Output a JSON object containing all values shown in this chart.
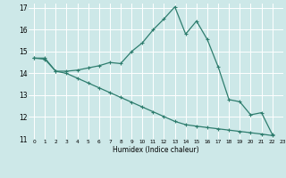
{
  "title": "",
  "xlabel": "Humidex (Indice chaleur)",
  "xlim": [
    -0.5,
    23
  ],
  "ylim": [
    11,
    17.2
  ],
  "yticks": [
    11,
    12,
    13,
    14,
    15,
    16,
    17
  ],
  "xticks": [
    0,
    1,
    2,
    3,
    4,
    5,
    6,
    7,
    8,
    9,
    10,
    11,
    12,
    13,
    14,
    15,
    16,
    17,
    18,
    19,
    20,
    21,
    22,
    23
  ],
  "bg_color": "#cde8e8",
  "grid_color": "#ffffff",
  "line_color": "#2e7d6e",
  "line1_x": [
    0,
    1,
    2,
    3,
    4,
    5,
    6,
    7,
    8,
    9,
    10,
    11,
    12,
    13,
    14,
    15,
    16,
    17,
    18,
    19,
    20,
    21,
    22
  ],
  "line1_y": [
    14.7,
    14.7,
    14.1,
    14.1,
    14.15,
    14.25,
    14.35,
    14.5,
    14.45,
    15.0,
    15.4,
    16.0,
    16.5,
    17.05,
    15.8,
    16.4,
    15.55,
    14.3,
    12.8,
    12.7,
    12.1,
    12.2,
    11.2
  ],
  "line2_x": [
    0,
    1,
    2,
    3,
    4,
    5,
    6,
    7,
    8,
    9,
    10,
    11,
    12,
    13,
    14,
    15,
    16,
    17,
    18,
    19,
    20,
    21,
    22
  ],
  "line2_y": [
    14.7,
    14.65,
    14.1,
    14.0,
    13.78,
    13.56,
    13.34,
    13.12,
    12.9,
    12.68,
    12.46,
    12.24,
    12.02,
    11.8,
    11.65,
    11.58,
    11.52,
    11.46,
    11.4,
    11.34,
    11.28,
    11.22,
    11.15
  ]
}
